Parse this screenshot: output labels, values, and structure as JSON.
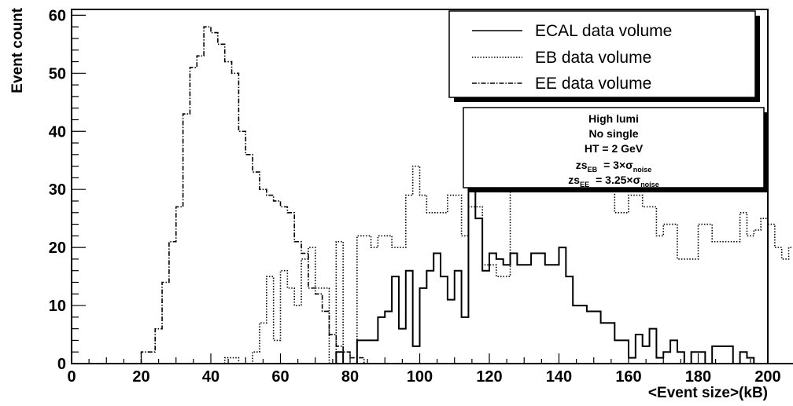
{
  "chart_data": {
    "type": "histogram-step",
    "xlabel": "<Event size>(kB)",
    "ylabel": "Event count",
    "xlim": [
      0,
      200
    ],
    "ylim": [
      0,
      61
    ],
    "bin_width": 2,
    "x_ticks": [
      "0",
      "20",
      "40",
      "60",
      "80",
      "100",
      "120",
      "140",
      "160",
      "180",
      "200"
    ],
    "y_ticks": [
      "0",
      "10",
      "20",
      "30",
      "40",
      "50",
      "60"
    ],
    "legend_position": "top-right",
    "series": [
      {
        "name": "ECAL data volume",
        "style": "solid",
        "x_start": 74,
        "values": [
          0,
          2,
          0,
          0,
          4,
          4,
          4,
          8,
          9,
          15,
          6,
          16,
          3,
          13,
          16,
          19,
          15,
          11,
          16,
          8,
          33,
          25,
          16,
          19,
          18,
          17,
          19,
          17,
          17,
          19,
          19,
          17,
          17,
          20,
          15,
          10,
          10,
          9,
          9,
          7,
          7,
          4,
          4,
          1,
          5,
          3,
          6,
          1,
          2,
          4,
          2,
          0,
          2,
          2,
          0,
          3,
          3,
          3,
          0,
          2,
          1,
          0,
          0,
          0,
          0,
          0,
          0,
          0,
          0,
          0,
          0,
          0,
          0,
          0,
          1,
          0,
          0,
          0,
          0,
          0,
          0,
          0,
          0,
          1,
          1,
          0
        ]
      },
      {
        "name": "EB data volume",
        "style": "dotted",
        "x_start": 44,
        "values": [
          1,
          1,
          0,
          0,
          2,
          7,
          15,
          4,
          16,
          13,
          10,
          18,
          20,
          13,
          13,
          0,
          21,
          0,
          0,
          22,
          22,
          20,
          22,
          22,
          20,
          20,
          29,
          34,
          29,
          26,
          26,
          26,
          29,
          29,
          22,
          27,
          27,
          17,
          17,
          15,
          15,
          30,
          30,
          42,
          34,
          30,
          34,
          30,
          30,
          33,
          30,
          30,
          34,
          34,
          33,
          30,
          26,
          26,
          29,
          29,
          27,
          27,
          22,
          24,
          24,
          18,
          18,
          18,
          24,
          24,
          21,
          21,
          21,
          21,
          26,
          22,
          23,
          25,
          24,
          20,
          18,
          20,
          21,
          19,
          20,
          16,
          14,
          19,
          12,
          14,
          6,
          6,
          4,
          4,
          4,
          1,
          1,
          0,
          1,
          0,
          0,
          0,
          0,
          0,
          0,
          0,
          0,
          0,
          0,
          0,
          0,
          0,
          0,
          0,
          0,
          0,
          0,
          0,
          0,
          0,
          0,
          0,
          0,
          0,
          0,
          0,
          0,
          0,
          0,
          0,
          0,
          0,
          0,
          0,
          0,
          0,
          0,
          0,
          0
        ]
      },
      {
        "name": "EE data volume",
        "style": "dashdot",
        "x_start": 20,
        "values": [
          2,
          2,
          6,
          14,
          21,
          27,
          43,
          51,
          53,
          58,
          57,
          55,
          52,
          50,
          40,
          36,
          33,
          30,
          29,
          28,
          27,
          26,
          21,
          19,
          13,
          12,
          9,
          5,
          3,
          2,
          1,
          1,
          0,
          0,
          0,
          0,
          0,
          0,
          0,
          0,
          0,
          0,
          0,
          0,
          0,
          0,
          0,
          0,
          0,
          0,
          0,
          0,
          0,
          0,
          0,
          0,
          0,
          0,
          0,
          0,
          0,
          0,
          0,
          0,
          0,
          0,
          0,
          0,
          0,
          0,
          0,
          0,
          0,
          0,
          0,
          0,
          0,
          0,
          0,
          0,
          0,
          0,
          0,
          0,
          0,
          0,
          0,
          0,
          0,
          0,
          0
        ]
      }
    ]
  },
  "info_box": {
    "line1": "High lumi",
    "line2": "No single",
    "line3": "HT = 2 GeV",
    "zs_eb_prefix": "zs",
    "zs_eb_sub": "EB",
    "zs_eb_value": "= 3×σ",
    "zs_eb_noise": "noise",
    "zs_ee_prefix": "zs",
    "zs_ee_sub": "EE",
    "zs_ee_value": "= 3.25×σ",
    "zs_ee_noise": "noise"
  }
}
